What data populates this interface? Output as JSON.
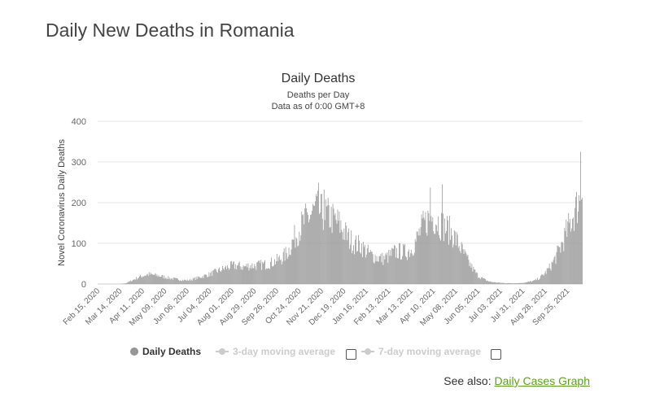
{
  "page": {
    "title": "Daily New Deaths in Romania",
    "see_also_label": "See also:",
    "see_also_link": "Daily Cases Graph"
  },
  "legend": {
    "series_label": "Daily Deaths",
    "ma3_label": "3-day moving average",
    "ma7_label": "7-day moving average"
  },
  "colors": {
    "bars": "#969696",
    "grid": "#e6e6e6",
    "link": "#5ba31a"
  },
  "chart_data": {
    "type": "bar",
    "title": "Daily Deaths",
    "subtitle": [
      "Deaths per Day",
      "Data as of 0:00 GMT+8"
    ],
    "ylabel": "Novel Coronavirus Daily Deaths",
    "xlabel": "",
    "ylim": [
      0,
      400
    ],
    "yticks": [
      0,
      100,
      200,
      300,
      400
    ],
    "xlim": [
      "2020-02-15",
      "2021-10-13"
    ],
    "xticks": [
      "Feb 15, 2020",
      "Mar 14, 2020",
      "Apr 11, 2020",
      "May 09, 2020",
      "Jun 06, 2020",
      "Jul 04, 2020",
      "Aug 01, 2020",
      "Aug 29, 2020",
      "Sep 26, 2020",
      "Oct 24, 2020",
      "Nov 21, 2020",
      "Dec 19, 2020",
      "Jan 16, 2021",
      "Feb 13, 2021",
      "Mar 13, 2021",
      "Apr 10, 2021",
      "May 08, 2021",
      "Jun 05, 2021",
      "Jul 03, 2021",
      "Jul 31, 2021",
      "Aug 28, 2021",
      "Sep 25, 2021"
    ],
    "grid": true,
    "series_name": "Daily Deaths",
    "weekly_dates": [
      "2020-02-15",
      "2020-03-14",
      "2020-03-21",
      "2020-03-28",
      "2020-04-04",
      "2020-04-11",
      "2020-04-18",
      "2020-04-25",
      "2020-05-02",
      "2020-05-09",
      "2020-05-16",
      "2020-05-23",
      "2020-05-30",
      "2020-06-06",
      "2020-06-13",
      "2020-06-20",
      "2020-06-27",
      "2020-07-04",
      "2020-07-11",
      "2020-07-18",
      "2020-07-25",
      "2020-08-01",
      "2020-08-08",
      "2020-08-15",
      "2020-08-22",
      "2020-08-29",
      "2020-09-05",
      "2020-09-12",
      "2020-09-19",
      "2020-09-26",
      "2020-10-03",
      "2020-10-10",
      "2020-10-17",
      "2020-10-24",
      "2020-10-31",
      "2020-11-07",
      "2020-11-14",
      "2020-11-21",
      "2020-11-28",
      "2020-12-05",
      "2020-12-12",
      "2020-12-19",
      "2020-12-26",
      "2021-01-02",
      "2021-01-09",
      "2021-01-16",
      "2021-01-23",
      "2021-01-30",
      "2021-02-06",
      "2021-02-13",
      "2021-02-20",
      "2021-02-27",
      "2021-03-06",
      "2021-03-13",
      "2021-03-20",
      "2021-03-27",
      "2021-04-03",
      "2021-04-10",
      "2021-04-17",
      "2021-04-24",
      "2021-05-01",
      "2021-05-08",
      "2021-05-15",
      "2021-05-22",
      "2021-05-29",
      "2021-06-05",
      "2021-06-12",
      "2021-06-19",
      "2021-06-26",
      "2021-07-03",
      "2021-07-10",
      "2021-07-17",
      "2021-07-24",
      "2021-07-31",
      "2021-08-07",
      "2021-08-14",
      "2021-08-21",
      "2021-08-28",
      "2021-09-04",
      "2021-09-11",
      "2021-09-18",
      "2021-09-25",
      "2021-10-02",
      "2021-10-09",
      "2021-10-13"
    ],
    "weekly_values": [
      0,
      0,
      2,
      8,
      15,
      20,
      24,
      22,
      20,
      17,
      14,
      12,
      10,
      9,
      12,
      16,
      20,
      24,
      30,
      35,
      40,
      45,
      45,
      42,
      45,
      45,
      47,
      48,
      52,
      58,
      65,
      80,
      110,
      135,
      155,
      170,
      182,
      175,
      170,
      160,
      150,
      130,
      110,
      98,
      95,
      80,
      70,
      65,
      62,
      68,
      78,
      80,
      78,
      85,
      110,
      140,
      160,
      165,
      152,
      140,
      130,
      110,
      85,
      60,
      38,
      20,
      12,
      6,
      4,
      3,
      2,
      2,
      2,
      3,
      5,
      8,
      15,
      28,
      45,
      70,
      100,
      135,
      170,
      205,
      240
    ],
    "notable_peaks": [
      {
        "date": "2020-11-17",
        "value": 249
      },
      {
        "date": "2020-11-24",
        "value": 232
      },
      {
        "date": "2021-04-06",
        "value": 237
      },
      {
        "date": "2021-04-21",
        "value": 245
      },
      {
        "date": "2021-10-11",
        "value": 325
      }
    ]
  }
}
